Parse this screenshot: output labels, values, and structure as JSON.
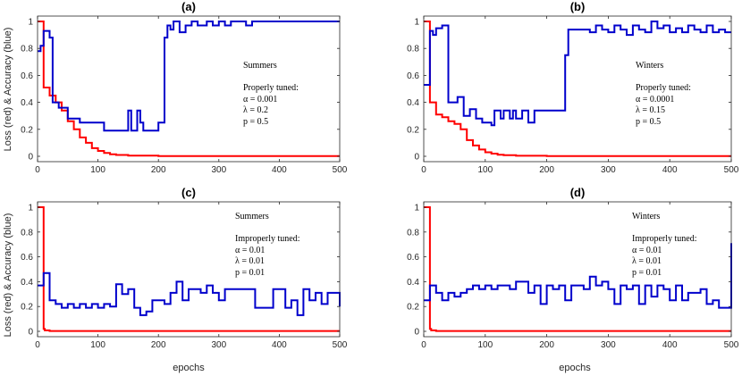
{
  "figure": {
    "ylabel": "Loss (red) & Accuracy (blue)",
    "xlabel": "epochs"
  },
  "colors": {
    "loss": "#ff0000",
    "accuracy": "#0000cc",
    "axis": "#262626"
  },
  "chart_data": [
    {
      "type": "line",
      "title": "(a)",
      "xlim": [
        0,
        500
      ],
      "ylim": [
        0,
        1
      ],
      "xticks": [
        0,
        100,
        200,
        300,
        400,
        500
      ],
      "yticks": [
        0,
        0.2,
        0.4,
        0.6,
        0.8,
        1
      ],
      "annotation": [
        "Summers",
        "Properly tuned:",
        "α = 0.001",
        "λ = 0.2",
        "p = 0.5"
      ],
      "series": [
        {
          "name": "Loss",
          "color": "red",
          "step": true,
          "x": [
            0,
            10,
            20,
            30,
            40,
            50,
            60,
            70,
            80,
            90,
            100,
            110,
            120,
            130,
            150,
            200,
            500
          ],
          "y": [
            1,
            0.51,
            0.45,
            0.4,
            0.34,
            0.26,
            0.2,
            0.14,
            0.1,
            0.06,
            0.04,
            0.025,
            0.015,
            0.01,
            0.005,
            0.002,
            0.002
          ]
        },
        {
          "name": "Accuracy",
          "color": "blue",
          "step": true,
          "x": [
            0,
            5,
            10,
            20,
            25,
            35,
            50,
            70,
            110,
            150,
            155,
            160,
            165,
            170,
            175,
            180,
            200,
            210,
            215,
            220,
            225,
            235,
            245,
            255,
            265,
            280,
            290,
            300,
            310,
            320,
            330,
            345,
            355,
            360,
            500
          ],
          "y": [
            0.78,
            0.82,
            0.93,
            0.88,
            0.4,
            0.36,
            0.28,
            0.25,
            0.19,
            0.34,
            0.19,
            0.19,
            0.34,
            0.25,
            0.19,
            0.19,
            0.25,
            0.88,
            0.97,
            0.94,
            1,
            0.92,
            0.97,
            1,
            0.97,
            1,
            0.97,
            1,
            0.97,
            1,
            1,
            0.97,
            1,
            1,
            1
          ]
        }
      ]
    },
    {
      "type": "line",
      "title": "(b)",
      "xlim": [
        0,
        500
      ],
      "ylim": [
        0,
        1
      ],
      "xticks": [
        0,
        100,
        200,
        300,
        400,
        500
      ],
      "yticks": [
        0,
        0.2,
        0.4,
        0.6,
        0.8,
        1
      ],
      "annotation": [
        "Winters",
        "Properly tuned:",
        "α = 0.0001",
        "λ = 0.15",
        "p = 0.5"
      ],
      "series": [
        {
          "name": "Loss",
          "color": "red",
          "step": true,
          "x": [
            0,
            10,
            20,
            30,
            40,
            50,
            60,
            70,
            80,
            90,
            100,
            110,
            120,
            130,
            150,
            200,
            500
          ],
          "y": [
            1,
            0.4,
            0.31,
            0.29,
            0.26,
            0.24,
            0.2,
            0.12,
            0.08,
            0.05,
            0.03,
            0.02,
            0.012,
            0.008,
            0.004,
            0.002,
            0.002
          ]
        },
        {
          "name": "Accuracy",
          "color": "blue",
          "step": true,
          "x": [
            0,
            10,
            15,
            20,
            30,
            40,
            55,
            65,
            75,
            85,
            95,
            105,
            110,
            115,
            125,
            130,
            140,
            145,
            150,
            160,
            170,
            180,
            200,
            230,
            235,
            245,
            255,
            270,
            280,
            290,
            300,
            310,
            320,
            330,
            340,
            350,
            360,
            370,
            380,
            390,
            400,
            410,
            420,
            430,
            440,
            450,
            460,
            470,
            480,
            490,
            500
          ],
          "y": [
            0.53,
            0.93,
            0.9,
            0.95,
            0.97,
            0.4,
            0.44,
            0.3,
            0.35,
            0.28,
            0.25,
            0.25,
            0.23,
            0.34,
            0.28,
            0.34,
            0.28,
            0.34,
            0.28,
            0.34,
            0.25,
            0.34,
            0.34,
            0.75,
            0.94,
            0.94,
            0.94,
            0.92,
            0.97,
            0.94,
            0.92,
            0.97,
            0.94,
            0.9,
            0.97,
            0.94,
            0.92,
            1,
            0.95,
            0.97,
            0.92,
            0.95,
            0.92,
            0.97,
            0.94,
            0.92,
            0.97,
            0.92,
            0.94,
            0.92,
            0.92
          ]
        }
      ]
    },
    {
      "type": "line",
      "title": "(c)",
      "xlim": [
        0,
        500
      ],
      "ylim": [
        0,
        1
      ],
      "xticks": [
        0,
        100,
        200,
        300,
        400,
        500
      ],
      "yticks": [
        0,
        0.2,
        0.4,
        0.6,
        0.8,
        1
      ],
      "annotation": [
        "Summers",
        "Improperly tuned:",
        "α = 0.01",
        "λ = 0.01",
        "p = 0.01"
      ],
      "series": [
        {
          "name": "Loss",
          "color": "red",
          "step": true,
          "x": [
            0,
            10,
            12,
            20,
            500
          ],
          "y": [
            1,
            0.02,
            0.008,
            0.003,
            0.003
          ]
        },
        {
          "name": "Accuracy",
          "color": "blue",
          "step": true,
          "x": [
            0,
            10,
            20,
            30,
            40,
            50,
            60,
            70,
            80,
            90,
            100,
            110,
            120,
            130,
            140,
            150,
            160,
            170,
            180,
            190,
            200,
            210,
            220,
            230,
            240,
            250,
            260,
            270,
            280,
            290,
            300,
            310,
            320,
            330,
            340,
            350,
            360,
            370,
            380,
            390,
            400,
            410,
            420,
            430,
            440,
            450,
            460,
            470,
            480,
            490,
            500
          ],
          "y": [
            0.37,
            0.47,
            0.25,
            0.22,
            0.19,
            0.22,
            0.19,
            0.22,
            0.19,
            0.22,
            0.19,
            0.22,
            0.2,
            0.38,
            0.3,
            0.34,
            0.19,
            0.13,
            0.16,
            0.25,
            0.25,
            0.22,
            0.31,
            0.4,
            0.25,
            0.34,
            0.34,
            0.31,
            0.37,
            0.31,
            0.25,
            0.34,
            0.34,
            0.34,
            0.34,
            0.34,
            0.19,
            0.19,
            0.19,
            0.34,
            0.34,
            0.19,
            0.25,
            0.13,
            0.34,
            0.25,
            0.31,
            0.22,
            0.31,
            0.31,
            0.2
          ]
        }
      ]
    },
    {
      "type": "line",
      "title": "(d)",
      "xlim": [
        0,
        500
      ],
      "ylim": [
        0,
        1
      ],
      "xticks": [
        0,
        100,
        200,
        300,
        400,
        500
      ],
      "yticks": [
        0,
        0.2,
        0.4,
        0.6,
        0.8,
        1
      ],
      "annotation": [
        "Winters",
        "Improperly tuned:",
        "α = 0.01",
        "λ = 0.01",
        "p = 0.01"
      ],
      "series": [
        {
          "name": "Loss",
          "color": "red",
          "step": true,
          "x": [
            0,
            10,
            12,
            20,
            500
          ],
          "y": [
            1,
            0.02,
            0.008,
            0.003,
            0.003
          ]
        },
        {
          "name": "Accuracy",
          "color": "blue",
          "step": true,
          "x": [
            0,
            10,
            20,
            30,
            40,
            50,
            60,
            70,
            80,
            90,
            100,
            110,
            120,
            130,
            140,
            150,
            160,
            170,
            180,
            190,
            200,
            210,
            220,
            230,
            240,
            250,
            260,
            270,
            280,
            290,
            300,
            310,
            320,
            330,
            340,
            350,
            360,
            370,
            380,
            390,
            400,
            410,
            420,
            430,
            440,
            450,
            460,
            470,
            480,
            490,
            500
          ],
          "y": [
            0.25,
            0.37,
            0.31,
            0.25,
            0.31,
            0.28,
            0.31,
            0.34,
            0.37,
            0.34,
            0.37,
            0.34,
            0.37,
            0.37,
            0.34,
            0.4,
            0.4,
            0.31,
            0.37,
            0.22,
            0.37,
            0.34,
            0.37,
            0.25,
            0.37,
            0.37,
            0.34,
            0.44,
            0.37,
            0.4,
            0.34,
            0.22,
            0.37,
            0.34,
            0.37,
            0.22,
            0.37,
            0.28,
            0.37,
            0.34,
            0.25,
            0.37,
            0.25,
            0.31,
            0.31,
            0.34,
            0.22,
            0.25,
            0.19,
            0.19,
            0.71
          ]
        }
      ]
    }
  ]
}
